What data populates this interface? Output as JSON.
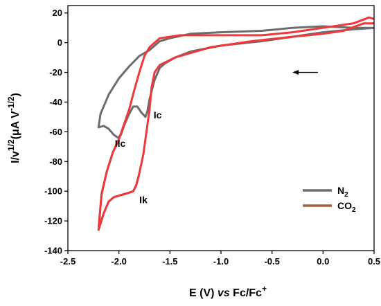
{
  "chart_data": {
    "type": "line",
    "xlabel": {
      "prefix": "E (V) ",
      "italic": "vs",
      "suffix": " Fc/Fc",
      "sup": "+"
    },
    "ylabel": {
      "base": "I/v",
      "sup1": "1/2",
      "middle": "(μA V",
      "sup2": "-1/2",
      "end": ")"
    },
    "xlim": [
      -2.5,
      0.5
    ],
    "ylim": [
      -140,
      25
    ],
    "x_ticks": [
      -2.5,
      -2.0,
      -1.5,
      -1.0,
      -0.5,
      0.0,
      0.5
    ],
    "x_tick_labels": [
      "-2.5",
      "-2.0",
      "-1.5",
      "-1.0",
      "-0.5",
      "0.0",
      "0.5"
    ],
    "y_ticks": [
      -140,
      -120,
      -100,
      -80,
      -60,
      -40,
      -20,
      0,
      20
    ],
    "y_tick_labels": [
      "-140",
      "-120",
      "-100",
      "-80",
      "-60",
      "-40",
      "-20",
      "0",
      "20"
    ],
    "grid": false,
    "legend_position": "bottom-right",
    "series": [
      {
        "name": "N",
        "name_sub": "2",
        "color": "#6d6d6d",
        "x": [
          0.5,
          0.3,
          0.0,
          -0.3,
          -0.6,
          -1.0,
          -1.3,
          -1.45,
          -1.55,
          -1.6,
          -1.65,
          -1.7,
          -1.72,
          -1.74,
          -1.78,
          -1.82,
          -1.86,
          -1.9,
          -1.95,
          -1.98,
          -2.01,
          -2.05,
          -2.1,
          -2.15,
          -2.2,
          -2.18,
          -2.1,
          -2.0,
          -1.9,
          -1.8,
          -1.7,
          -1.6,
          -1.5,
          -1.3,
          -1.0,
          -0.6,
          -0.3,
          0.0,
          0.3,
          0.5
        ],
        "y": [
          10,
          9,
          7,
          4,
          1,
          -2,
          -6,
          -10,
          -14,
          -17,
          -25,
          -38,
          -46,
          -50,
          -47,
          -43,
          -43,
          -48,
          -56,
          -62,
          -64,
          -62,
          -58,
          -56,
          -57,
          -48,
          -35,
          -24,
          -16,
          -9,
          -5,
          1,
          3,
          6,
          7,
          8,
          10,
          11,
          10,
          10
        ]
      },
      {
        "name": "CO",
        "name_sub": "2",
        "color": "#a0643c",
        "x": [
          -1.8,
          -1.83,
          -1.86,
          -1.9,
          -1.95,
          -2.0,
          -2.05,
          -2.1,
          -2.15,
          -2.2,
          -2.17,
          -2.12,
          -2.06,
          -2.0
        ],
        "y": [
          -88,
          -96,
          -100,
          -101,
          -102,
          -103,
          -104,
          -107,
          -115,
          -126,
          -102,
          -87,
          -74,
          -65
        ]
      },
      {
        "name": "",
        "color": "#f0373c",
        "x": [
          0.5,
          0.4,
          0.2,
          0.0,
          -0.3,
          -0.7,
          -1.1,
          -1.45,
          -1.6,
          -1.65,
          -1.68,
          -1.7,
          -1.73,
          -1.76,
          -1.8,
          -1.83,
          -1.86,
          -1.9,
          -1.95,
          -2.0,
          -2.05,
          -2.1,
          -2.15,
          -2.2,
          -2.17,
          -2.12,
          -2.06,
          -2.0,
          -1.95,
          -1.9,
          -1.85,
          -1.8,
          -1.75,
          -1.7,
          -1.6,
          -1.4,
          -1.0,
          -0.6,
          -0.3,
          0.0,
          0.3,
          0.45,
          0.5
        ],
        "y": [
          13,
          13,
          8,
          6,
          4,
          1,
          -3,
          -10,
          -15,
          -20,
          -30,
          -45,
          -60,
          -75,
          -88,
          -96,
          -100,
          -101,
          -102,
          -103,
          -104,
          -107,
          -115,
          -126,
          -102,
          -87,
          -74,
          -65,
          -55,
          -45,
          -32,
          -20,
          -9,
          -3,
          3,
          5,
          5,
          5,
          7,
          10,
          13,
          17,
          16
        ]
      }
    ],
    "annotations": [
      {
        "text": "Ic",
        "x": -1.66,
        "y": -51
      },
      {
        "text": "IIc",
        "x": -2.04,
        "y": -70
      },
      {
        "text": "Ik",
        "x": -1.8,
        "y": -108
      }
    ],
    "arrow": {
      "from": [
        -0.05,
        -20
      ],
      "to": [
        -0.3,
        -20
      ],
      "color": "#000000"
    }
  }
}
